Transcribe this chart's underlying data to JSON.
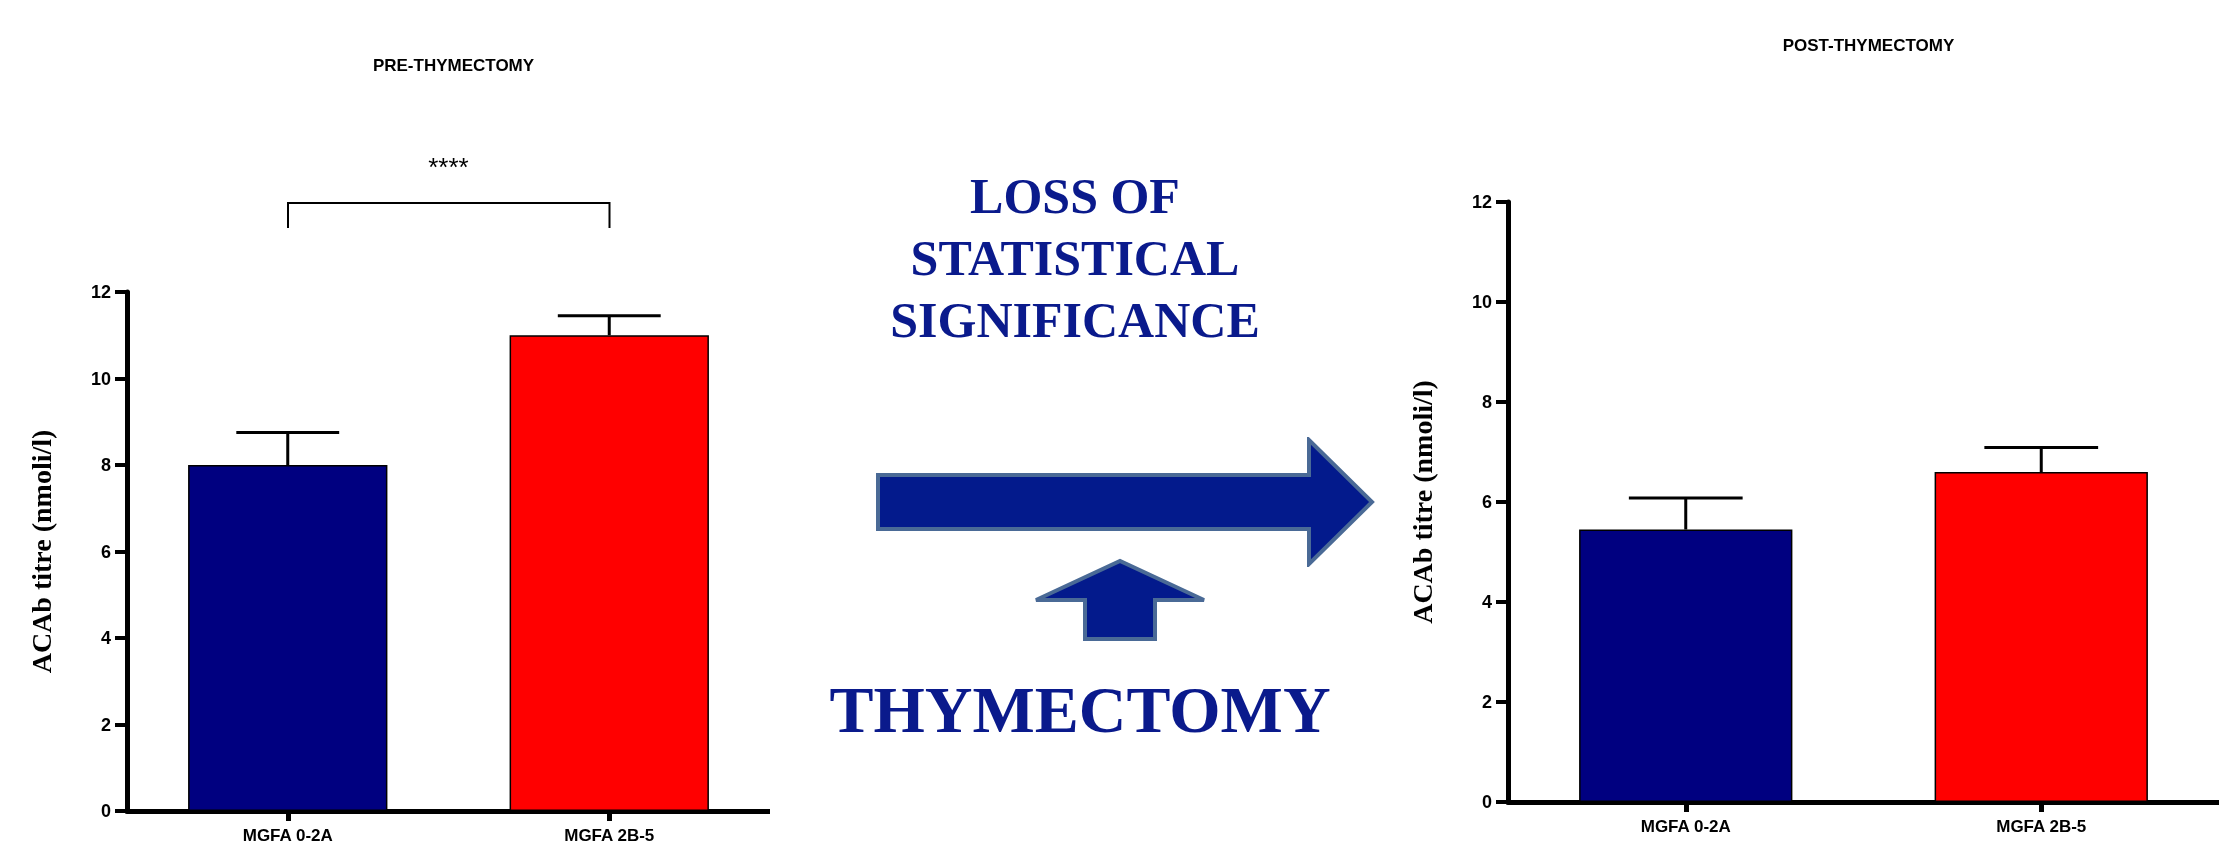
{
  "chart_data": [
    {
      "type": "bar",
      "title": "PRE-THYMECTOMY",
      "ylabel": "ACAb titre (nmoli/l)",
      "categories": [
        "MGFA 0-2A",
        "MGFA 2B-5"
      ],
      "values": [
        8.0,
        11.0
      ],
      "colors": [
        "#000080",
        "#ff0000"
      ],
      "errors": [
        [
          8.0,
          8.75
        ],
        [
          11.0,
          11.45
        ]
      ],
      "ylim": [
        0,
        12
      ],
      "yticks": [
        0,
        2,
        4,
        6,
        8,
        10,
        12
      ],
      "annotations": [
        "****"
      ]
    },
    {
      "type": "other",
      "annotations": [
        "LOSS OF STATISTICAL SIGNIFICANCE",
        "THYMECTOMY"
      ]
    },
    {
      "type": "bar",
      "title": "POST-THYMECTOMY",
      "ylabel": "ACAb titre (nmoli/l)",
      "categories": [
        "MGFA 0-2A",
        "MGFA 2B-5"
      ],
      "values": [
        5.45,
        6.6
      ],
      "colors": [
        "#000080",
        "#ff0000"
      ],
      "errors": [
        [
          5.45,
          6.08
        ],
        [
          6.6,
          7.09
        ]
      ],
      "ylim": [
        0,
        12
      ],
      "yticks": [
        0,
        2,
        4,
        6,
        8,
        10,
        12
      ]
    }
  ]
}
